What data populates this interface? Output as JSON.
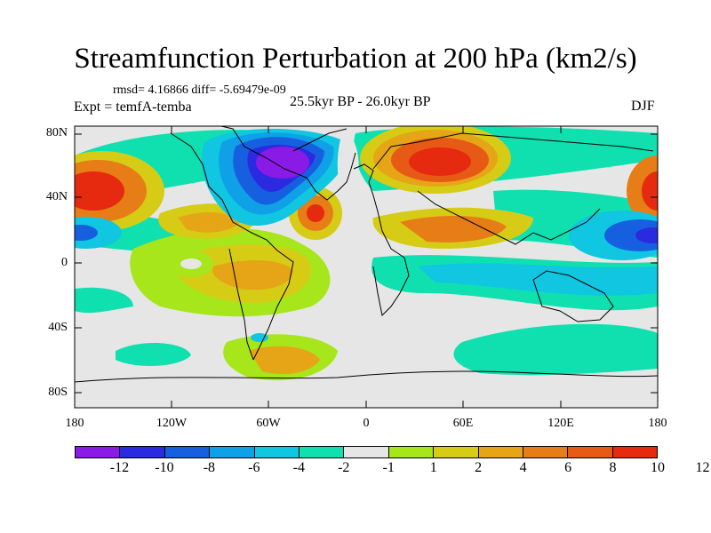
{
  "title": "Streamfunction Perturbation at 200 hPa (km2/s)",
  "rmsd_line": "rmsd= 4.16866 diff= -5.69479e-09",
  "experiment": "Expt = temfA-temba",
  "period": "25.5kyr BP - 26.0kyr BP",
  "season": "DJF",
  "lat_labels": [
    "80N",
    "40N",
    "0",
    "40S",
    "80S"
  ],
  "lon_labels": [
    "180",
    "120W",
    "60W",
    "0",
    "60E",
    "120E",
    "180"
  ],
  "colorbar": {
    "colors": [
      "#8a1ae6",
      "#2a2ae0",
      "#1660e0",
      "#0fa0e8",
      "#10c6e0",
      "#10e0b0",
      "#e6e6e6",
      "#a6e61a",
      "#d6cc16",
      "#e6a516",
      "#e67d16",
      "#e65a16",
      "#e62a0f"
    ],
    "labels": [
      "-12",
      "-10",
      "-8",
      "-6",
      "-4",
      "-2",
      "-1",
      "1",
      "2",
      "4",
      "6",
      "8",
      "10",
      "12"
    ]
  },
  "map_data": {
    "lon_range": [
      -180,
      180
    ],
    "lat_range": [
      -90,
      90
    ],
    "field": "streamfunction perturbation",
    "units": "km2/s",
    "level_hPa": 200,
    "anomalies": [
      {
        "lon": -60,
        "lat": 55,
        "value": -12
      },
      {
        "lon": -80,
        "lat": 45,
        "value": -9
      },
      {
        "lon": 45,
        "lat": 60,
        "value": 12
      },
      {
        "lon": -170,
        "lat": 42,
        "value": 11
      },
      {
        "lon": 180,
        "lat": 40,
        "value": 10
      },
      {
        "lon": -15,
        "lat": 40,
        "value": 8
      },
      {
        "lon": -100,
        "lat": 35,
        "value": 5
      },
      {
        "lon": 50,
        "lat": 25,
        "value": 6
      },
      {
        "lon": -160,
        "lat": 18,
        "value": -5
      },
      {
        "lon": 165,
        "lat": 18,
        "value": -8
      },
      {
        "lon": -60,
        "lat": -15,
        "value": 4
      },
      {
        "lon": -20,
        "lat": -30,
        "value": 3
      },
      {
        "lon": -40,
        "lat": -65,
        "value": 5
      },
      {
        "lon": 100,
        "lat": -15,
        "value": -3
      },
      {
        "lon": 120,
        "lat": -50,
        "value": -2
      },
      {
        "lon": -130,
        "lat": -60,
        "value": -3
      }
    ]
  }
}
